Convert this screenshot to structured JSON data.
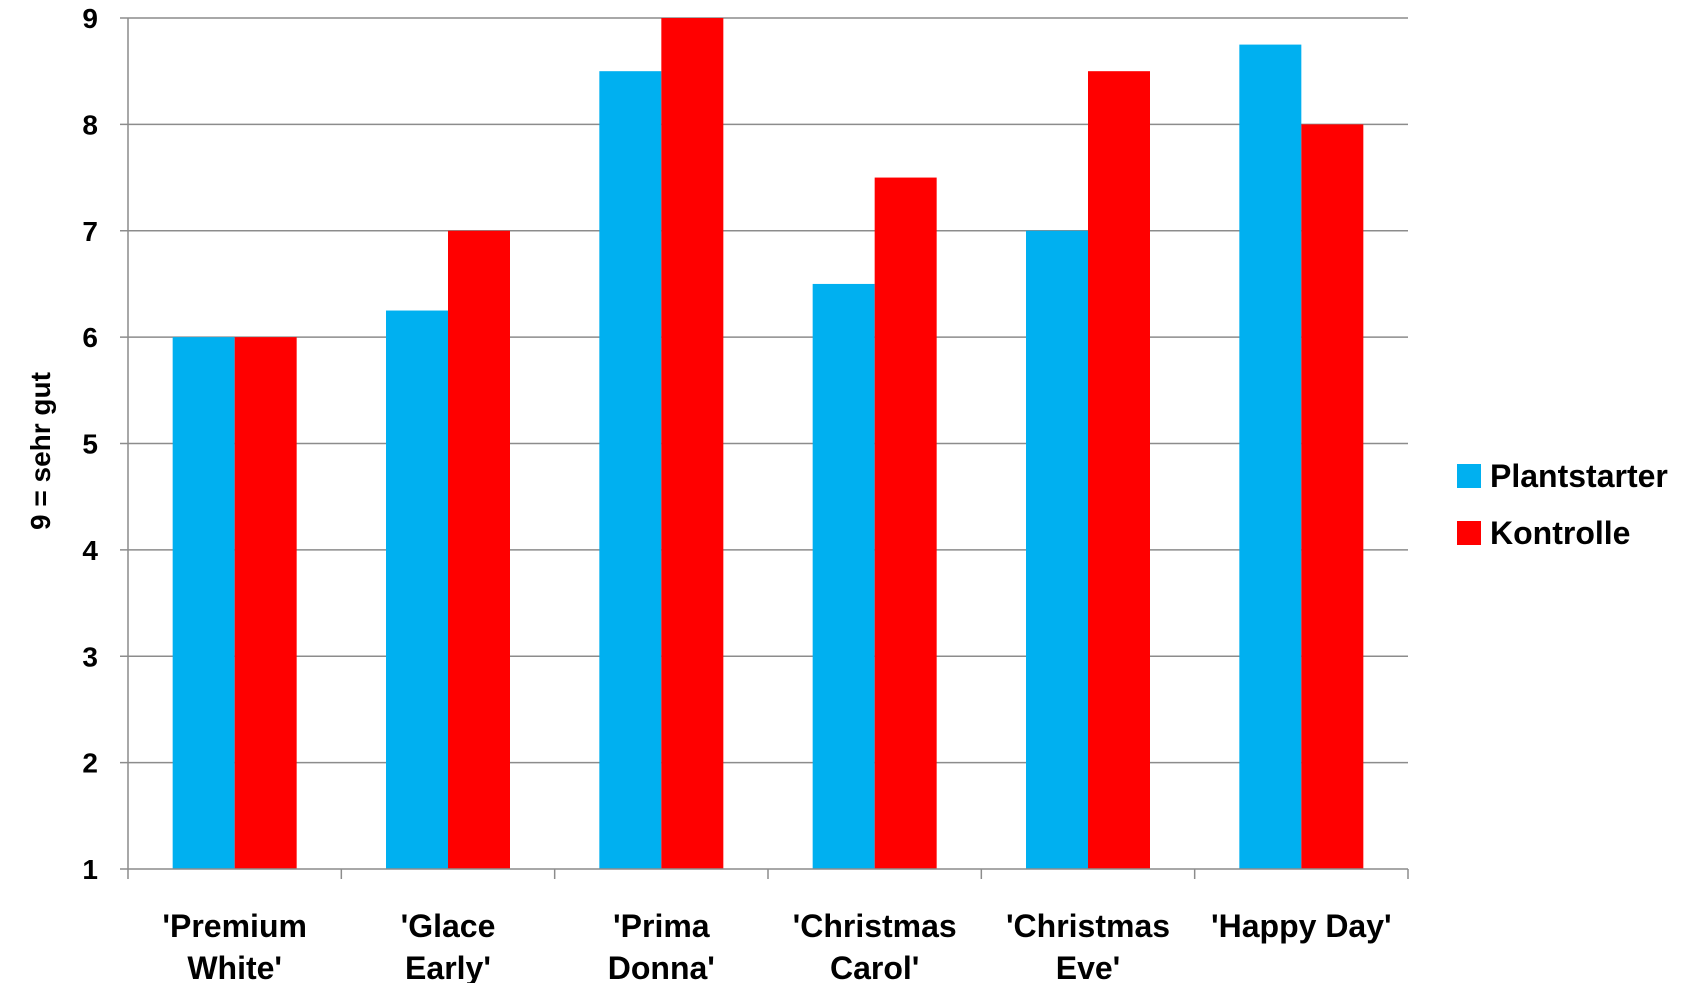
{
  "chart_data": {
    "type": "bar",
    "title": "",
    "xlabel": "",
    "ylabel": "9 = sehr gut",
    "ylim": [
      1,
      9
    ],
    "yticks": [
      1,
      2,
      3,
      4,
      5,
      6,
      7,
      8,
      9
    ],
    "grid": true,
    "legend_position": "right",
    "categories": [
      [
        "'Premium",
        "White'"
      ],
      [
        "'Glace",
        "Early'"
      ],
      [
        "'Prima",
        "Donna'"
      ],
      [
        "'Christmas",
        "Carol'"
      ],
      [
        "'Christmas",
        "Eve'"
      ],
      [
        "'Happy Day'"
      ]
    ],
    "series": [
      {
        "name": "Plantstarter",
        "color": "#00b0f0",
        "values": [
          6,
          6.25,
          8.5,
          6.5,
          7,
          8.75
        ]
      },
      {
        "name": "Kontrolle",
        "color": "#ff0000",
        "values": [
          6,
          7,
          9,
          7.5,
          8.5,
          8
        ]
      }
    ]
  }
}
